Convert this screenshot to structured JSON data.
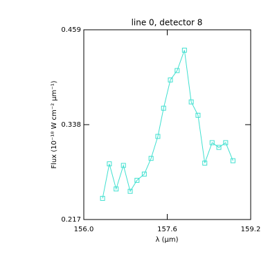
{
  "chart_data": {
    "type": "line",
    "title": "line 0, detector 8",
    "xlabel": "λ (µm)",
    "ylabel": "Flux (10⁻¹⁸ W cm⁻² µm⁻¹)",
    "x": [
      156.36,
      156.49,
      156.62,
      156.76,
      156.89,
      157.02,
      157.16,
      157.29,
      157.42,
      157.53,
      157.66,
      157.79,
      157.93,
      158.06,
      158.19,
      158.32,
      158.46,
      158.59,
      158.72,
      158.86
    ],
    "series": [
      {
        "color": "#40e0d0",
        "values": [
          0.244,
          0.288,
          0.256,
          0.286,
          0.253,
          0.267,
          0.275,
          0.295,
          0.323,
          0.359,
          0.395,
          0.407,
          0.433,
          0.367,
          0.35,
          0.289,
          0.315,
          0.309,
          0.315,
          0.292
        ]
      }
    ],
    "xlim": [
      156.0,
      159.2
    ],
    "xticks": [
      {
        "value": 156.0,
        "label": "156.0"
      },
      {
        "value": 157.6,
        "label": "157.6"
      },
      {
        "value": 159.2,
        "label": "159.2"
      }
    ],
    "ylim": [
      0.217,
      0.459
    ],
    "yticks": [
      0.217,
      0.338,
      0.459
    ]
  }
}
